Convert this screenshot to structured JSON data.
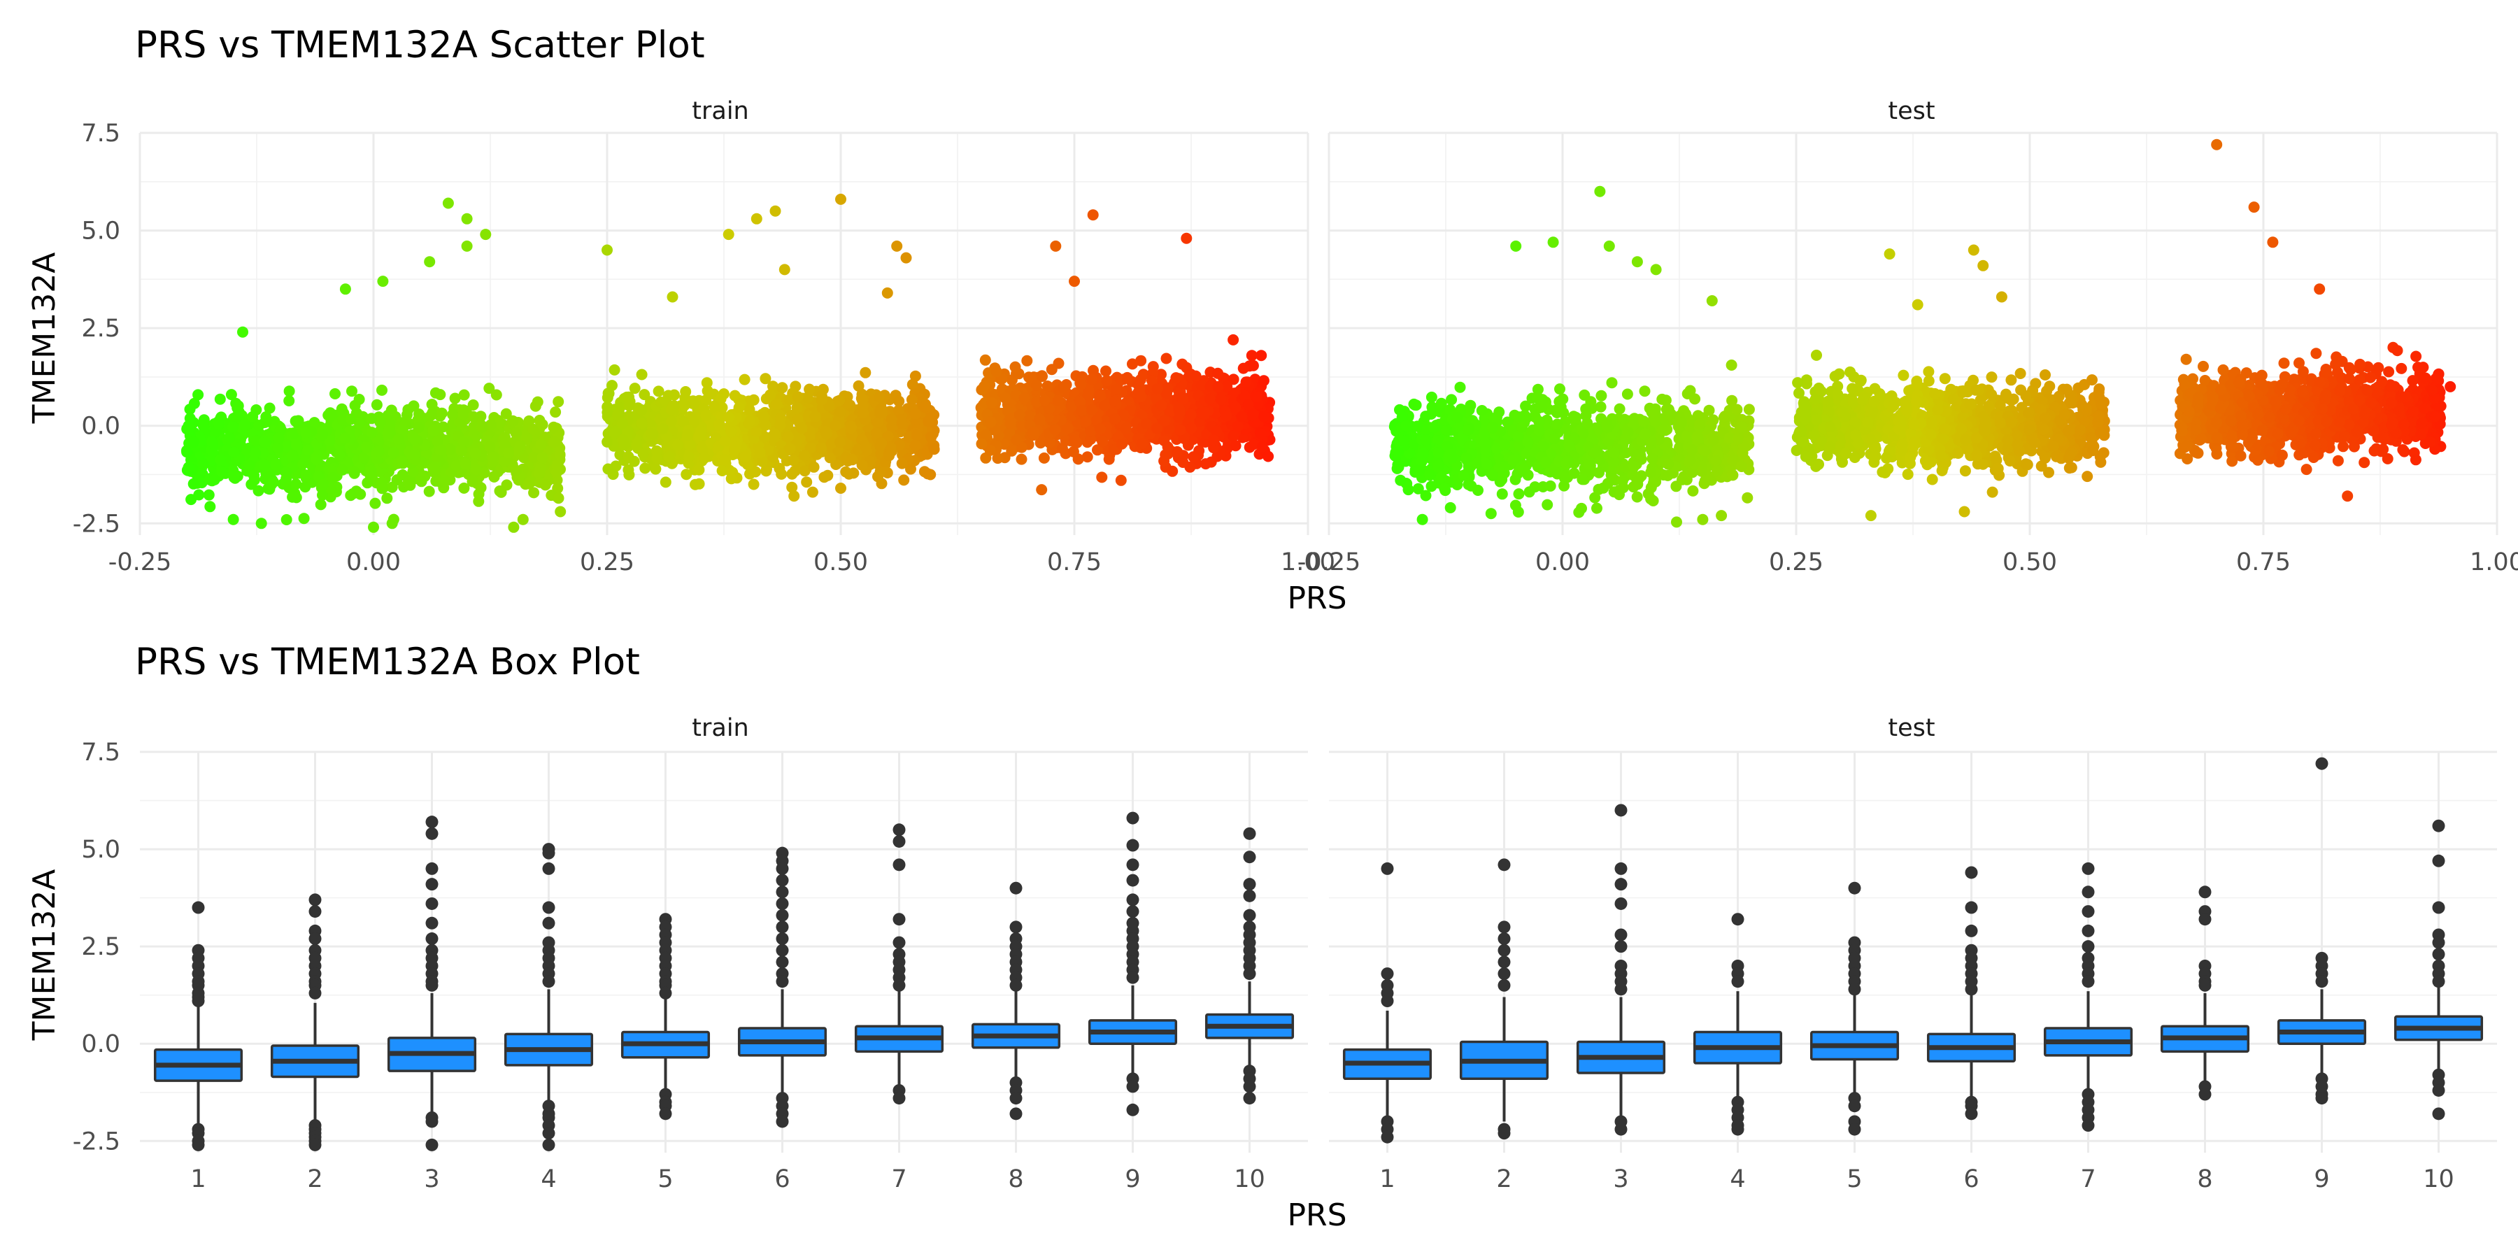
{
  "charts": {
    "scatter": {
      "title": "PRS vs TMEM132A Scatter Plot",
      "panels": [
        "train",
        "test"
      ],
      "xlabel": "PRS",
      "ylabel": "TMEM132A",
      "xticks": [
        "-0.25",
        "0.00",
        "0.25",
        "0.50",
        "0.75",
        "1.00"
      ],
      "yticks": [
        "-2.5",
        "0.0",
        "2.5",
        "5.0",
        "7.5"
      ]
    },
    "box": {
      "title": "PRS vs TMEM132A Box Plot",
      "panels": [
        "train",
        "test"
      ],
      "xlabel": "PRS",
      "ylabel": "TMEM132A",
      "xticks": [
        "1",
        "2",
        "3",
        "4",
        "5",
        "6",
        "7",
        "8",
        "9",
        "10"
      ],
      "yticks": [
        "-2.5",
        "0.0",
        "2.5",
        "5.0",
        "7.5"
      ]
    }
  },
  "chart_data": [
    {
      "type": "scatter",
      "title": "PRS vs TMEM132A Scatter Plot",
      "xlabel": "PRS",
      "ylabel": "TMEM132A",
      "facets": [
        "train",
        "test"
      ],
      "xlim": [
        -0.25,
        1.0
      ],
      "ylim": [
        -2.8,
        7.5
      ],
      "grid": true,
      "color_scale": {
        "low": "#33ff00",
        "mid": "#cccc00",
        "high": "#ff1a00",
        "mapped_to": "PRS"
      },
      "clusters": {
        "train": [
          {
            "x_range": [
              -0.2,
              0.2
            ],
            "y_center": -0.6,
            "y_spread": 0.55
          },
          {
            "x_range": [
              0.25,
              0.6
            ],
            "y_center": -0.1,
            "y_spread": 0.5
          },
          {
            "x_range": [
              0.65,
              0.96
            ],
            "y_center": 0.3,
            "y_spread": 0.5
          }
        ],
        "test": [
          {
            "x_range": [
              -0.18,
              0.2
            ],
            "y_center": -0.5,
            "y_spread": 0.55
          },
          {
            "x_range": [
              0.25,
              0.58
            ],
            "y_center": 0.0,
            "y_spread": 0.5
          },
          {
            "x_range": [
              0.66,
              0.94
            ],
            "y_center": 0.35,
            "y_spread": 0.5
          }
        ]
      },
      "outliers": {
        "train": [
          [
            0.08,
            5.7
          ],
          [
            0.1,
            5.3
          ],
          [
            0.1,
            4.6
          ],
          [
            0.12,
            4.9
          ],
          [
            0.43,
            5.5
          ],
          [
            0.5,
            5.8
          ],
          [
            0.41,
            5.3
          ],
          [
            0.38,
            4.9
          ],
          [
            0.77,
            5.4
          ],
          [
            0.87,
            4.8
          ],
          [
            0.73,
            4.6
          ],
          [
            0.56,
            4.6
          ],
          [
            0.57,
            4.3
          ],
          [
            0.01,
            3.7
          ],
          [
            -0.03,
            3.5
          ],
          [
            0.06,
            4.2
          ],
          [
            0.25,
            4.5
          ],
          [
            0.32,
            3.3
          ],
          [
            0.44,
            4.0
          ],
          [
            0.55,
            3.4
          ],
          [
            0.75,
            3.7
          ],
          [
            -0.14,
            2.4
          ],
          [
            -0.15,
            -2.4
          ],
          [
            -0.12,
            -2.5
          ],
          [
            0.0,
            -2.6
          ],
          [
            0.02,
            -2.5
          ],
          [
            0.15,
            -2.6
          ],
          [
            0.2,
            -2.2
          ],
          [
            0.16,
            -2.4
          ],
          [
            0.92,
            2.2
          ],
          [
            0.95,
            1.8
          ],
          [
            0.94,
            1.8
          ],
          [
            0.8,
            -1.4
          ],
          [
            0.45,
            -1.8
          ],
          [
            0.47,
            -1.7
          ],
          [
            0.5,
            -1.6
          ],
          [
            0.6,
            -0.6
          ],
          [
            0.58,
            -0.5
          ]
        ],
        "test": [
          [
            0.04,
            6.0
          ],
          [
            -0.05,
            4.6
          ],
          [
            -0.01,
            4.7
          ],
          [
            0.05,
            4.6
          ],
          [
            0.08,
            4.2
          ],
          [
            0.1,
            4.0
          ],
          [
            0.16,
            3.2
          ],
          [
            0.35,
            4.4
          ],
          [
            0.44,
            4.5
          ],
          [
            0.45,
            4.1
          ],
          [
            0.47,
            3.3
          ],
          [
            0.38,
            3.1
          ],
          [
            0.7,
            7.2
          ],
          [
            0.74,
            5.6
          ],
          [
            0.76,
            4.7
          ],
          [
            0.81,
            3.5
          ],
          [
            0.68,
            -0.7
          ],
          [
            0.84,
            -1.8
          ],
          [
            -0.15,
            -2.4
          ],
          [
            -0.12,
            -2.1
          ],
          [
            0.15,
            -2.4
          ],
          [
            0.17,
            -2.3
          ],
          [
            0.33,
            -2.3
          ],
          [
            0.43,
            -2.2
          ],
          [
            0.46,
            -1.7
          ],
          [
            0.95,
            1.0
          ]
        ]
      }
    },
    {
      "type": "box",
      "title": "PRS vs TMEM132A Box Plot",
      "xlabel": "PRS",
      "ylabel": "TMEM132A",
      "facets": [
        "train",
        "test"
      ],
      "categories": [
        "1",
        "2",
        "3",
        "4",
        "5",
        "6",
        "7",
        "8",
        "9",
        "10"
      ],
      "ylim": [
        -2.8,
        7.5
      ],
      "fill": "#1e90ff",
      "series": [
        {
          "name": "train",
          "boxes": [
            {
              "q1": -0.95,
              "median": -0.55,
              "q3": -0.15,
              "whisker_low": -2.05,
              "whisker_high": 0.95,
              "outliers": [
                3.5,
                2.4,
                2.2,
                2.0,
                1.8,
                1.6,
                1.5,
                1.3,
                1.2,
                1.1,
                -2.2,
                -2.3,
                -2.5,
                -2.6
              ]
            },
            {
              "q1": -0.85,
              "median": -0.45,
              "q3": -0.05,
              "whisker_low": -1.95,
              "whisker_high": 1.05,
              "outliers": [
                3.7,
                3.4,
                2.9,
                2.7,
                2.4,
                2.2,
                2.0,
                1.8,
                1.6,
                1.5,
                1.3,
                -2.1,
                -2.2,
                -2.3,
                -2.4,
                -2.5,
                -2.6
              ]
            },
            {
              "q1": -0.7,
              "median": -0.25,
              "q3": 0.15,
              "whisker_low": -1.85,
              "whisker_high": 1.3,
              "outliers": [
                5.7,
                5.4,
                4.5,
                4.1,
                3.6,
                3.1,
                2.7,
                2.4,
                2.2,
                2.0,
                1.8,
                1.6,
                1.5,
                -1.9,
                -2.0,
                -2.6
              ]
            },
            {
              "q1": -0.55,
              "median": -0.15,
              "q3": 0.25,
              "whisker_low": -1.5,
              "whisker_high": 1.4,
              "outliers": [
                5.0,
                4.9,
                4.5,
                3.5,
                3.1,
                2.6,
                2.4,
                2.2,
                2.0,
                1.8,
                1.6,
                -1.6,
                -1.8,
                -1.9,
                -2.1,
                -2.3,
                -2.6
              ]
            },
            {
              "q1": -0.35,
              "median": 0.0,
              "q3": 0.3,
              "whisker_low": -1.25,
              "whisker_high": 1.25,
              "outliers": [
                3.2,
                3.0,
                2.8,
                2.6,
                2.4,
                2.2,
                2.0,
                1.8,
                1.6,
                1.5,
                1.3,
                -1.3,
                -1.5,
                -1.6,
                -1.8
              ]
            },
            {
              "q1": -0.3,
              "median": 0.05,
              "q3": 0.4,
              "whisker_low": -1.3,
              "whisker_high": 1.4,
              "outliers": [
                4.9,
                4.7,
                4.5,
                4.2,
                3.9,
                3.6,
                3.3,
                3.0,
                2.7,
                2.4,
                2.1,
                1.8,
                1.6,
                -1.4,
                -1.6,
                -1.8,
                -2.0
              ]
            },
            {
              "q1": -0.2,
              "median": 0.15,
              "q3": 0.45,
              "whisker_low": -1.1,
              "whisker_high": 1.4,
              "outliers": [
                5.5,
                5.2,
                4.6,
                3.2,
                2.6,
                2.3,
                2.1,
                1.9,
                1.7,
                1.5,
                -1.2,
                -1.4
              ]
            },
            {
              "q1": -0.1,
              "median": 0.2,
              "q3": 0.5,
              "whisker_low": -0.95,
              "whisker_high": 1.4,
              "outliers": [
                4.0,
                3.0,
                2.7,
                2.5,
                2.3,
                2.1,
                1.9,
                1.7,
                1.5,
                -1.0,
                -1.2,
                -1.4,
                -1.8
              ]
            },
            {
              "q1": 0.0,
              "median": 0.3,
              "q3": 0.6,
              "whisker_low": -0.9,
              "whisker_high": 1.5,
              "outliers": [
                5.8,
                5.1,
                4.6,
                4.2,
                3.7,
                3.4,
                3.1,
                2.9,
                2.7,
                2.5,
                2.3,
                2.1,
                1.9,
                1.7,
                -0.9,
                -1.1,
                -1.7
              ]
            },
            {
              "q1": 0.15,
              "median": 0.45,
              "q3": 0.75,
              "whisker_low": -0.6,
              "whisker_high": 1.6,
              "outliers": [
                5.4,
                4.8,
                4.1,
                3.8,
                3.3,
                3.0,
                2.8,
                2.6,
                2.4,
                2.2,
                2.0,
                1.8,
                -0.7,
                -0.9,
                -1.1,
                -1.4
              ]
            }
          ]
        },
        {
          "name": "test",
          "boxes": [
            {
              "q1": -0.9,
              "median": -0.5,
              "q3": -0.15,
              "whisker_low": -1.85,
              "whisker_high": 0.85,
              "outliers": [
                4.5,
                1.8,
                1.5,
                1.3,
                1.1,
                -2.0,
                -2.2,
                -2.4
              ]
            },
            {
              "q1": -0.9,
              "median": -0.45,
              "q3": 0.05,
              "whisker_low": -2.0,
              "whisker_high": 1.2,
              "outliers": [
                4.6,
                3.0,
                2.7,
                2.4,
                2.1,
                1.8,
                1.5,
                -2.2,
                -2.3
              ]
            },
            {
              "q1": -0.75,
              "median": -0.35,
              "q3": 0.05,
              "whisker_low": -1.9,
              "whisker_high": 1.2,
              "outliers": [
                6.0,
                4.5,
                4.1,
                3.6,
                2.8,
                2.5,
                2.0,
                1.8,
                1.6,
                1.4,
                -2.0,
                -2.2
              ]
            },
            {
              "q1": -0.5,
              "median": -0.1,
              "q3": 0.3,
              "whisker_low": -1.45,
              "whisker_high": 1.35,
              "outliers": [
                3.2,
                2.0,
                1.8,
                1.6,
                -1.5,
                -1.7,
                -1.9,
                -2.1,
                -2.2
              ]
            },
            {
              "q1": -0.4,
              "median": -0.05,
              "q3": 0.3,
              "whisker_low": -1.3,
              "whisker_high": 1.3,
              "outliers": [
                4.0,
                2.6,
                2.4,
                2.2,
                2.0,
                1.8,
                1.6,
                1.4,
                -1.4,
                -1.6,
                -2.0,
                -2.2
              ]
            },
            {
              "q1": -0.45,
              "median": -0.1,
              "q3": 0.25,
              "whisker_low": -1.4,
              "whisker_high": 1.25,
              "outliers": [
                4.4,
                3.5,
                2.9,
                2.4,
                2.2,
                2.0,
                1.8,
                1.6,
                1.4,
                -1.5,
                -1.6,
                -1.8
              ]
            },
            {
              "q1": -0.3,
              "median": 0.05,
              "q3": 0.4,
              "whisker_low": -1.2,
              "whisker_high": 1.35,
              "outliers": [
                4.5,
                3.9,
                3.4,
                2.9,
                2.5,
                2.2,
                2.0,
                1.8,
                1.6,
                -1.3,
                -1.5,
                -1.7,
                -1.9,
                -2.1
              ]
            },
            {
              "q1": -0.2,
              "median": 0.15,
              "q3": 0.45,
              "whisker_low": -1.0,
              "whisker_high": 1.3,
              "outliers": [
                3.9,
                3.4,
                3.2,
                2.0,
                1.8,
                1.6,
                1.5,
                -1.1,
                -1.3
              ]
            },
            {
              "q1": 0.0,
              "median": 0.3,
              "q3": 0.6,
              "whisker_low": -0.8,
              "whisker_high": 1.4,
              "outliers": [
                7.2,
                2.2,
                2.0,
                1.8,
                1.6,
                -0.9,
                -1.1,
                -1.3,
                -1.4
              ]
            },
            {
              "q1": 0.1,
              "median": 0.4,
              "q3": 0.7,
              "whisker_low": -0.7,
              "whisker_high": 1.5,
              "outliers": [
                5.6,
                4.7,
                3.5,
                2.8,
                2.6,
                2.3,
                2.0,
                1.8,
                1.6,
                -0.8,
                -1.0,
                -1.2,
                -1.8
              ]
            }
          ]
        }
      ]
    }
  ]
}
